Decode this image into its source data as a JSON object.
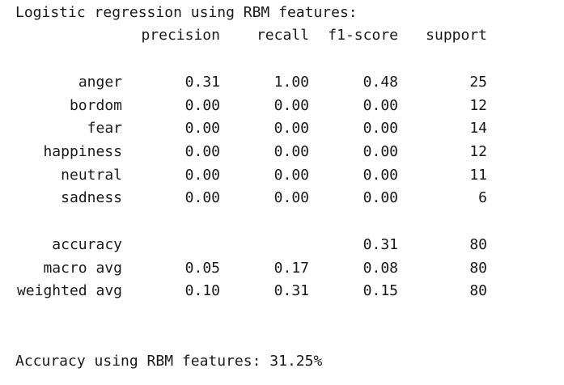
{
  "console": {
    "title_line": "Logistic regression using RBM features:",
    "headers": [
      "precision",
      "recall",
      "f1-score",
      "support"
    ],
    "class_rows": [
      {
        "label": "anger",
        "precision": "0.31",
        "recall": "1.00",
        "f1": "0.48",
        "support": "25"
      },
      {
        "label": "bordom",
        "precision": "0.00",
        "recall": "0.00",
        "f1": "0.00",
        "support": "12"
      },
      {
        "label": "fear",
        "precision": "0.00",
        "recall": "0.00",
        "f1": "0.00",
        "support": "14"
      },
      {
        "label": "happiness",
        "precision": "0.00",
        "recall": "0.00",
        "f1": "0.00",
        "support": "12"
      },
      {
        "label": "neutral",
        "precision": "0.00",
        "recall": "0.00",
        "f1": "0.00",
        "support": "11"
      },
      {
        "label": "sadness",
        "precision": "0.00",
        "recall": "0.00",
        "f1": "0.00",
        "support": "6"
      }
    ],
    "summary_rows": [
      {
        "label": "accuracy",
        "precision": "",
        "recall": "",
        "f1": "0.31",
        "support": "80"
      },
      {
        "label": "macro avg",
        "precision": "0.05",
        "recall": "0.17",
        "f1": "0.08",
        "support": "80"
      },
      {
        "label": "weighted avg",
        "precision": "0.10",
        "recall": "0.31",
        "f1": "0.15",
        "support": "80"
      }
    ],
    "footer_line": "Accuracy using RBM features: 31.25%"
  }
}
